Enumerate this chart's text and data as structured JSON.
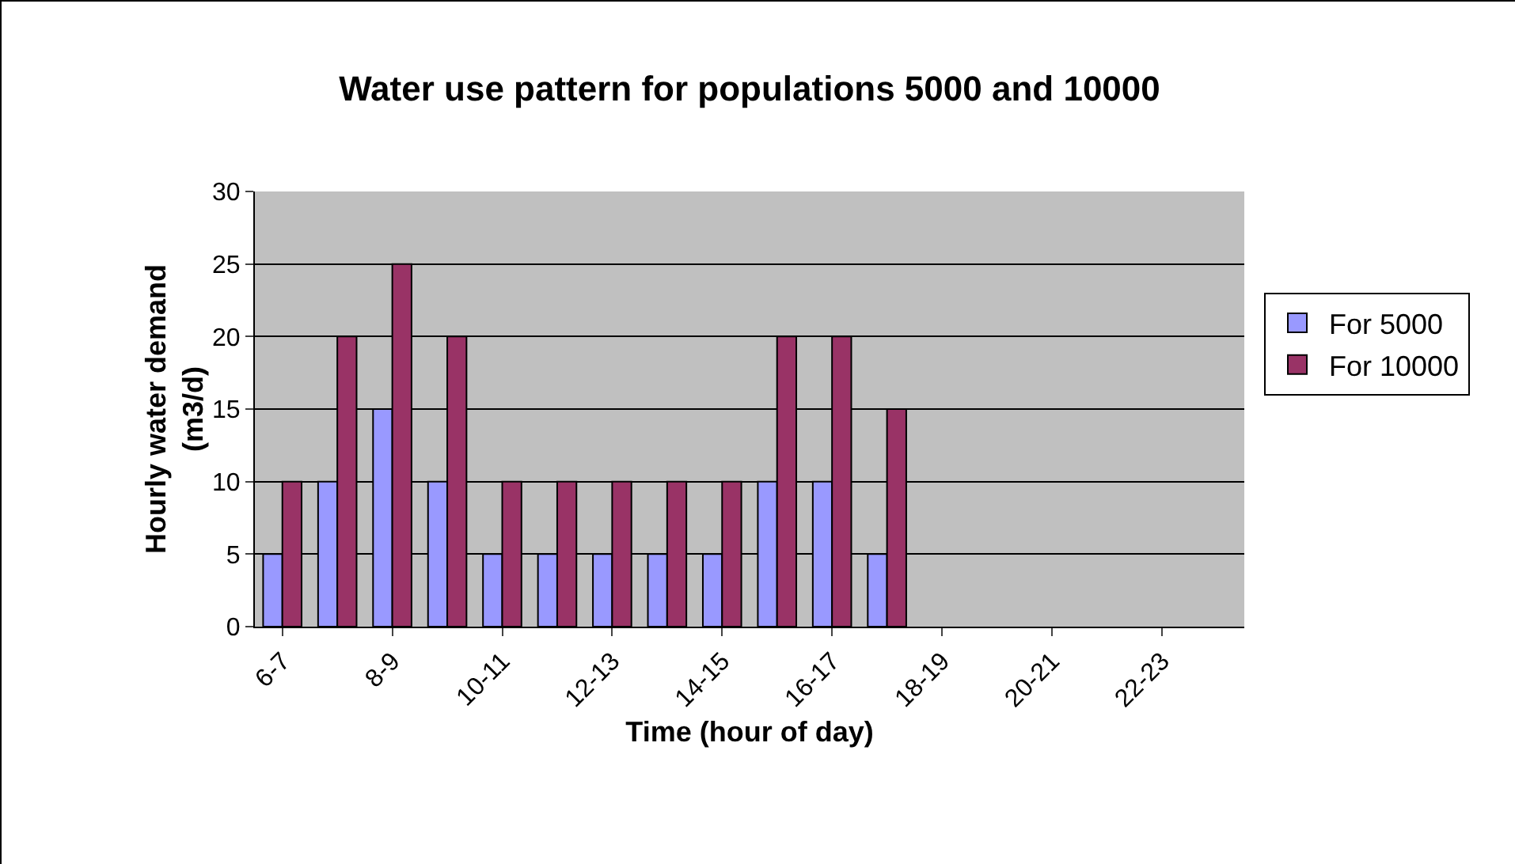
{
  "chart_data": {
    "type": "bar",
    "title": "Water use pattern for populations 5000 and 10000",
    "xlabel": "Time (hour of day)",
    "ylabel": "Hourly water demand (m3/d)",
    "categories": [
      "6-7",
      null,
      "8-9",
      null,
      "10-11",
      null,
      "12-13",
      null,
      "14-15",
      null,
      "16-17",
      null,
      "18-19",
      null,
      "20-21",
      null,
      "22-23",
      null
    ],
    "series": [
      {
        "name": "For 5000",
        "color": "#9999ff",
        "values": [
          5,
          10,
          15,
          10,
          5,
          5,
          5,
          5,
          5,
          10,
          10,
          5,
          null,
          null,
          null,
          null,
          null,
          null
        ]
      },
      {
        "name": "For 10000",
        "color": "#993366",
        "values": [
          10,
          20,
          25,
          20,
          10,
          10,
          10,
          10,
          10,
          20,
          20,
          15,
          null,
          null,
          null,
          null,
          null,
          null
        ]
      }
    ],
    "ylim": [
      0,
      30
    ],
    "yticks": [
      0,
      5,
      10,
      15,
      20,
      25,
      30
    ],
    "grid": "y",
    "legend": "right"
  }
}
